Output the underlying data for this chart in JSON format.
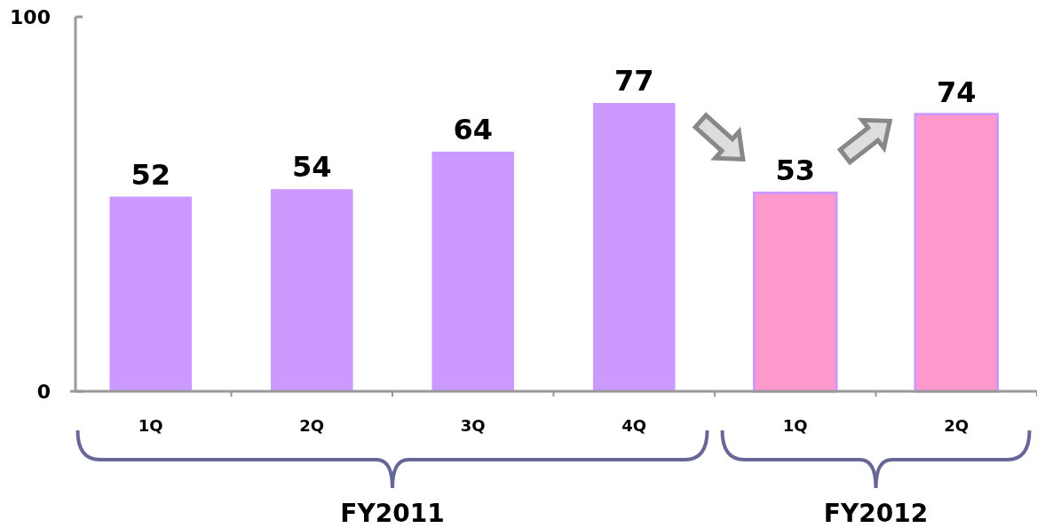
{
  "chart_data": {
    "type": "bar",
    "categories": [
      "1Q",
      "2Q",
      "3Q",
      "4Q",
      "1Q",
      "2Q"
    ],
    "values": [
      52,
      54,
      64,
      77,
      53,
      74
    ],
    "colors": [
      "#cc99ff",
      "#cc99ff",
      "#cc99ff",
      "#cc99ff",
      "#ff99cc",
      "#ff99cc"
    ],
    "ylim": [
      0,
      100
    ],
    "yticks": [
      0,
      100
    ],
    "data_labels": true,
    "annotations": [
      "FY2011",
      "FY2012"
    ]
  }
}
